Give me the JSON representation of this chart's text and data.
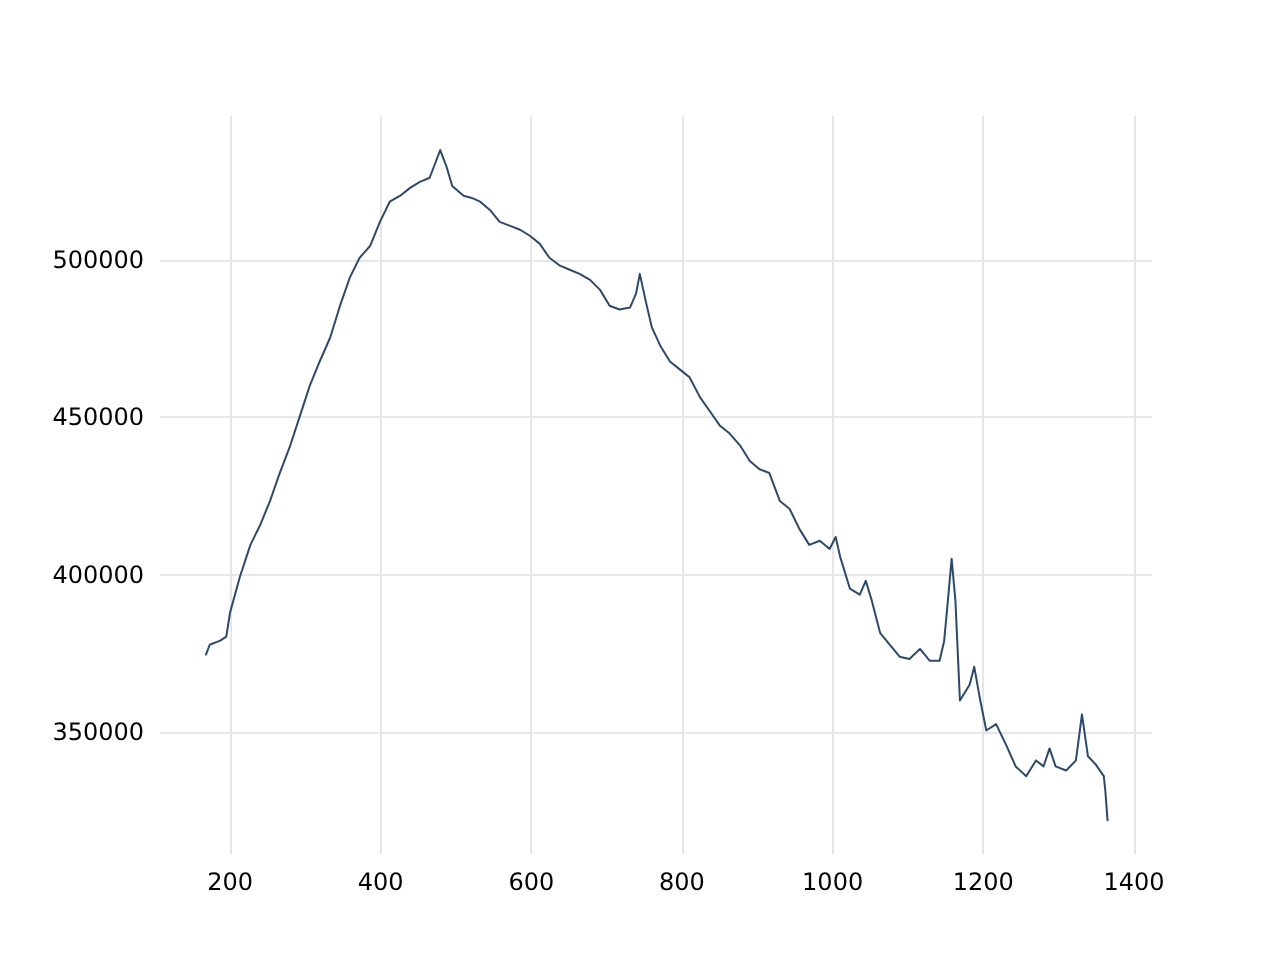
{
  "chart_data": {
    "type": "line",
    "color": "#2e4a6b",
    "grid": true,
    "marker": "none",
    "line_style": "solid",
    "xlim": [
      107,
      1424
    ],
    "xticks": [
      200,
      400,
      600,
      800,
      1000,
      1200,
      1400
    ],
    "ylim": [
      311400,
      545600
    ],
    "yticks": [
      350000,
      400000,
      450000,
      500000
    ],
    "x": [
      168,
      173,
      187,
      195,
      200,
      213,
      227,
      240,
      253,
      266,
      280,
      293,
      306,
      319,
      333,
      346,
      359,
      372,
      386,
      399,
      412,
      426,
      439,
      452,
      465,
      473,
      479,
      487,
      495,
      510,
      521,
      532,
      545,
      558,
      571,
      585,
      598,
      611,
      624,
      638,
      651,
      664,
      678,
      691,
      704,
      717,
      731,
      739,
      744,
      752,
      760,
      771,
      784,
      797,
      810,
      824,
      837,
      850,
      863,
      877,
      890,
      903,
      916,
      930,
      943,
      956,
      969,
      983,
      996,
      1004,
      1010,
      1023,
      1036,
      1044,
      1052,
      1063,
      1076,
      1089,
      1102,
      1116,
      1129,
      1142,
      1148,
      1153,
      1158,
      1163,
      1169,
      1182,
      1188,
      1196,
      1204,
      1217,
      1230,
      1243,
      1257,
      1270,
      1280,
      1288,
      1296,
      1310,
      1323,
      1331,
      1339,
      1349,
      1360,
      1362,
      1365
    ],
    "values": [
      374700,
      377800,
      379100,
      380400,
      388000,
      399300,
      409500,
      415800,
      423400,
      432300,
      441100,
      450600,
      460100,
      467700,
      475300,
      485400,
      494300,
      500600,
      504400,
      512000,
      518400,
      520300,
      522800,
      524700,
      526000,
      531000,
      534800,
      529800,
      523400,
      520300,
      519600,
      518400,
      515800,
      512000,
      510800,
      509500,
      507600,
      505100,
      500600,
      498100,
      496800,
      495500,
      493600,
      490500,
      485400,
      484200,
      484800,
      489200,
      495500,
      486700,
      478500,
      472800,
      467700,
      465200,
      462700,
      456300,
      451900,
      447400,
      444900,
      441100,
      436100,
      433500,
      432300,
      423400,
      420900,
      414500,
      409500,
      410800,
      408200,
      412000,
      405700,
      395600,
      393700,
      398100,
      391800,
      381600,
      377800,
      374000,
      373300,
      376500,
      372700,
      372700,
      378900,
      391800,
      405100,
      391800,
      360100,
      365200,
      370800,
      360100,
      350600,
      352600,
      346200,
      339200,
      336100,
      341100,
      339200,
      344900,
      339200,
      337900,
      341100,
      355700,
      342400,
      339900,
      336100,
      331600,
      322100
    ]
  }
}
